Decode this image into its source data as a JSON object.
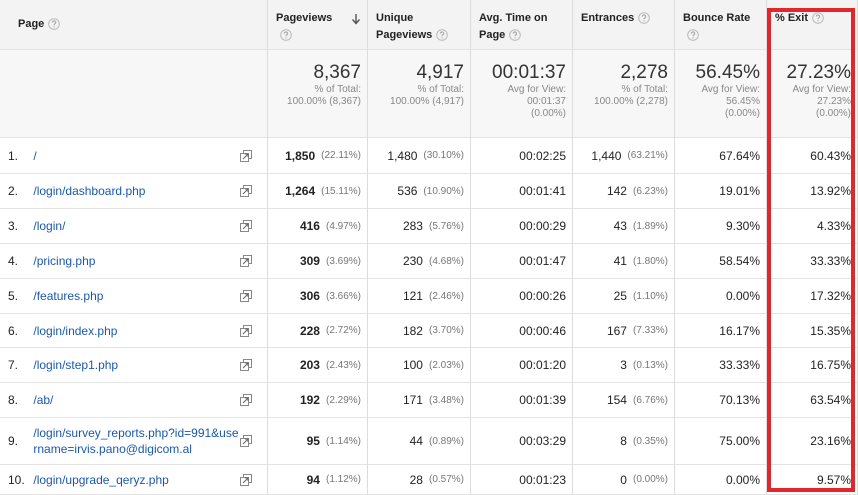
{
  "columns": [
    "Page",
    "Pageviews",
    "Unique Pageviews",
    "Avg. Time on Page",
    "Entrances",
    "Bounce Rate",
    "% Exit"
  ],
  "summary": [
    {
      "value": "8,367",
      "lines": [
        "% of Total:",
        "100.00% (8,367)"
      ]
    },
    {
      "value": "4,917",
      "lines": [
        "% of Total:",
        "100.00% (4,917)"
      ]
    },
    {
      "value": "00:01:37",
      "lines": [
        "Avg for View:",
        "00:01:37",
        "(0.00%)"
      ]
    },
    {
      "value": "2,278",
      "lines": [
        "% of Total:",
        "100.00% (2,278)"
      ]
    },
    {
      "value": "56.45%",
      "lines": [
        "Avg for View:",
        "56.45%",
        "(0.00%)"
      ]
    },
    {
      "value": "27.23%",
      "lines": [
        "Avg for View:",
        "27.23%",
        "(0.00%)"
      ]
    }
  ],
  "rows": [
    {
      "index": "1.",
      "page": "/",
      "pageviews": "1,850",
      "pageviews_pct": "(22.11%)",
      "unique": "1,480",
      "unique_pct": "(30.10%)",
      "avg_time": "00:02:25",
      "entrances": "1,440",
      "entrances_pct": "(63.21%)",
      "bounce_rate": "67.64%",
      "exit": "60.43%"
    },
    {
      "index": "2.",
      "page": "/login/dashboard.php",
      "pageviews": "1,264",
      "pageviews_pct": "(15.11%)",
      "unique": "536",
      "unique_pct": "(10.90%)",
      "avg_time": "00:01:41",
      "entrances": "142",
      "entrances_pct": "(6.23%)",
      "bounce_rate": "19.01%",
      "exit": "13.92%"
    },
    {
      "index": "3.",
      "page": "/login/",
      "pageviews": "416",
      "pageviews_pct": "(4.97%)",
      "unique": "283",
      "unique_pct": "(5.76%)",
      "avg_time": "00:00:29",
      "entrances": "43",
      "entrances_pct": "(1.89%)",
      "bounce_rate": "9.30%",
      "exit": "4.33%"
    },
    {
      "index": "4.",
      "page": "/pricing.php",
      "pageviews": "309",
      "pageviews_pct": "(3.69%)",
      "unique": "230",
      "unique_pct": "(4.68%)",
      "avg_time": "00:01:47",
      "entrances": "41",
      "entrances_pct": "(1.80%)",
      "bounce_rate": "58.54%",
      "exit": "33.33%"
    },
    {
      "index": "5.",
      "page": "/features.php",
      "pageviews": "306",
      "pageviews_pct": "(3.66%)",
      "unique": "121",
      "unique_pct": "(2.46%)",
      "avg_time": "00:00:26",
      "entrances": "25",
      "entrances_pct": "(1.10%)",
      "bounce_rate": "0.00%",
      "exit": "17.32%"
    },
    {
      "index": "6.",
      "page": "/login/index.php",
      "pageviews": "228",
      "pageviews_pct": "(2.72%)",
      "unique": "182",
      "unique_pct": "(3.70%)",
      "avg_time": "00:00:46",
      "entrances": "167",
      "entrances_pct": "(7.33%)",
      "bounce_rate": "16.17%",
      "exit": "15.35%"
    },
    {
      "index": "7.",
      "page": "/login/step1.php",
      "pageviews": "203",
      "pageviews_pct": "(2.43%)",
      "unique": "100",
      "unique_pct": "(2.03%)",
      "avg_time": "00:01:20",
      "entrances": "3",
      "entrances_pct": "(0.13%)",
      "bounce_rate": "33.33%",
      "exit": "16.75%"
    },
    {
      "index": "8.",
      "page": "/ab/",
      "pageviews": "192",
      "pageviews_pct": "(2.29%)",
      "unique": "171",
      "unique_pct": "(3.48%)",
      "avg_time": "00:01:39",
      "entrances": "154",
      "entrances_pct": "(6.76%)",
      "bounce_rate": "70.13%",
      "exit": "63.54%"
    },
    {
      "index": "9.",
      "page": "/login/survey_reports.php?id=991&username=irvis.pano@digicom.al",
      "pageviews": "95",
      "pageviews_pct": "(1.14%)",
      "unique": "44",
      "unique_pct": "(0.89%)",
      "avg_time": "00:03:29",
      "entrances": "8",
      "entrances_pct": "(0.35%)",
      "bounce_rate": "75.00%",
      "exit": "23.16%"
    },
    {
      "index": "10.",
      "page": "/login/upgrade_qeryz.php",
      "pageviews": "94",
      "pageviews_pct": "(1.12%)",
      "unique": "28",
      "unique_pct": "(0.57%)",
      "avg_time": "00:01:23",
      "entrances": "0",
      "entrances_pct": "(0.00%)",
      "bounce_rate": "0.00%",
      "exit": "9.57%"
    }
  ]
}
